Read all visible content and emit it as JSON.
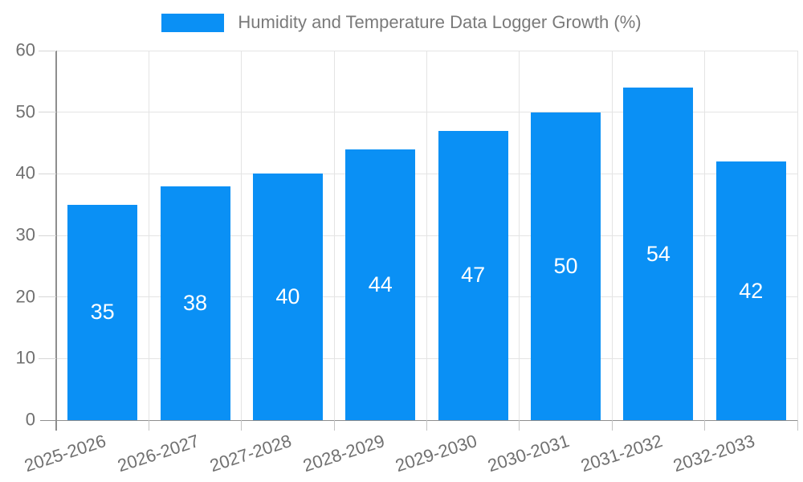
{
  "legend": {
    "label": "Humidity and Temperature Data Logger Growth (%)"
  },
  "colors": {
    "bar": "#0a90f5",
    "bar_label": "#ffffff",
    "grid": "#e4e4e4",
    "axis": "#8e8e8e",
    "ytick": "#d6d6d6",
    "xtick": "#c4c4c4",
    "text": "#707070",
    "legend_text": "#7a7a7a"
  },
  "chart_data": {
    "type": "bar",
    "title": "Humidity and Temperature Data Logger Growth (%)",
    "categories": [
      "2025-2026",
      "2026-2027",
      "2027-2028",
      "2028-2029",
      "2029-2030",
      "2030-2031",
      "2031-2032",
      "2032-2033"
    ],
    "values": [
      35,
      38,
      40,
      44,
      47,
      50,
      54,
      42
    ],
    "xlabel": "",
    "ylabel": "",
    "ylim": [
      0,
      60
    ],
    "yticks": [
      0,
      10,
      20,
      30,
      40,
      50,
      60
    ],
    "grid": true,
    "legend_position": "top",
    "value_labels": "inside-center",
    "x_tick_rotation_deg": -18
  }
}
